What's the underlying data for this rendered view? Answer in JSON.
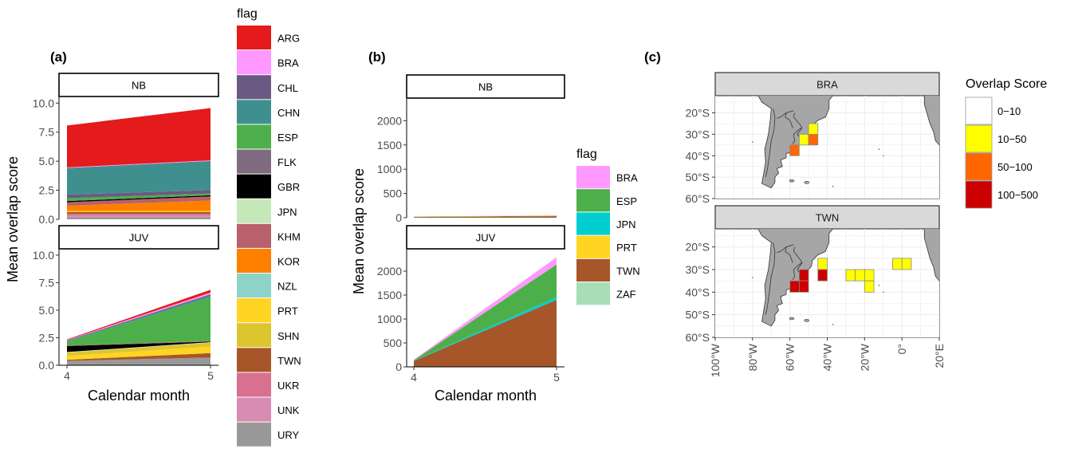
{
  "panel_a": {
    "label": "(a)",
    "legend_title": "flag",
    "flags": [
      {
        "name": "ARG",
        "color": "#E41A1C"
      },
      {
        "name": "BRA",
        "color": "#FF99FF"
      },
      {
        "name": "CHL",
        "color": "#6A5A83"
      },
      {
        "name": "CHN",
        "color": "#3F8F8F"
      },
      {
        "name": "ESP",
        "color": "#4DAF4A"
      },
      {
        "name": "FLK",
        "color": "#7F6B80"
      },
      {
        "name": "GBR",
        "color": "#000000"
      },
      {
        "name": "JPN",
        "color": "#C6E8B8"
      },
      {
        "name": "KHM",
        "color": "#B8606B"
      },
      {
        "name": "KOR",
        "color": "#FF7F00"
      },
      {
        "name": "NZL",
        "color": "#8ED3C7"
      },
      {
        "name": "PRT",
        "color": "#FFD422"
      },
      {
        "name": "SHN",
        "color": "#DDC530"
      },
      {
        "name": "TWN",
        "color": "#A65628"
      },
      {
        "name": "UKR",
        "color": "#D97090"
      },
      {
        "name": "UNK",
        "color": "#D98CB3"
      },
      {
        "name": "URY",
        "color": "#999999"
      }
    ]
  },
  "panel_b": {
    "label": "(b)",
    "legend_title": "flag",
    "flags": [
      {
        "name": "BRA",
        "color": "#FF99FF"
      },
      {
        "name": "ESP",
        "color": "#4DAF4A"
      },
      {
        "name": "JPN",
        "color": "#00CED1"
      },
      {
        "name": "PRT",
        "color": "#FFD422"
      },
      {
        "name": "TWN",
        "color": "#A65628"
      },
      {
        "name": "ZAF",
        "color": "#A8DDB5"
      }
    ]
  },
  "panel_c": {
    "label": "(c)",
    "legend_title": "Overlap Score",
    "legend_items": [
      {
        "label": "0−10",
        "color": "#FFFFFF"
      },
      {
        "label": "10−50",
        "color": "#FFFF00"
      },
      {
        "label": "50−100",
        "color": "#FF6600"
      },
      {
        "label": "100−500",
        "color": "#CC0000"
      }
    ],
    "lat_labels": [
      "20°S",
      "30°S",
      "40°S",
      "50°S",
      "60°S"
    ],
    "lon_labels": [
      "100°W",
      "80°W",
      "60°W",
      "40°W",
      "20°W",
      "0°",
      "20°E"
    ]
  },
  "chart_data": [
    {
      "id": "a",
      "type": "area",
      "stacked": true,
      "xlabel": "Calendar month",
      "ylabel": "Mean overlap score",
      "x": [
        4,
        5
      ],
      "x_ticks": [
        "4",
        "5"
      ],
      "ylim": [
        0,
        10.5
      ],
      "y_ticks": [
        "0.0",
        "2.5",
        "5.0",
        "7.5",
        "10.0"
      ],
      "facets": [
        {
          "strip": "NB",
          "series": [
            {
              "name": "URY",
              "values": [
                0.2,
                0.2
              ]
            },
            {
              "name": "UNK",
              "values": [
                0.12,
                0.12
              ]
            },
            {
              "name": "UKR",
              "values": [
                0.15,
                0.15
              ]
            },
            {
              "name": "TWN",
              "values": [
                0.15,
                0.15
              ]
            },
            {
              "name": "PRT",
              "values": [
                0.1,
                0.1
              ]
            },
            {
              "name": "KOR",
              "values": [
                0.45,
                0.9
              ]
            },
            {
              "name": "KHM",
              "values": [
                0.3,
                0.35
              ]
            },
            {
              "name": "GBR",
              "values": [
                0.1,
                0.1
              ]
            },
            {
              "name": "ESP",
              "values": [
                0.25,
                0.15
              ]
            },
            {
              "name": "CHL",
              "values": [
                0.3,
                0.3
              ]
            },
            {
              "name": "CHN",
              "values": [
                2.3,
                2.5
              ]
            },
            {
              "name": "BRA",
              "values": [
                0.05,
                0.05
              ]
            },
            {
              "name": "ARG",
              "values": [
                3.6,
                4.5
              ]
            }
          ]
        },
        {
          "strip": "JUV",
          "series": [
            {
              "name": "URY",
              "values": [
                0.4,
                0.7
              ]
            },
            {
              "name": "TWN",
              "values": [
                0.1,
                0.4
              ]
            },
            {
              "name": "PRT",
              "values": [
                0.35,
                0.6
              ]
            },
            {
              "name": "SHN",
              "values": [
                0.3,
                0.35
              ]
            },
            {
              "name": "JPN",
              "values": [
                0.05,
                0.05
              ]
            },
            {
              "name": "GBR",
              "values": [
                0.55,
                0.05
              ]
            },
            {
              "name": "KHM",
              "values": [
                0.05,
                0.05
              ]
            },
            {
              "name": "ESP",
              "values": [
                0.35,
                4.0
              ]
            },
            {
              "name": "CHN",
              "values": [
                0.05,
                0.15
              ]
            },
            {
              "name": "CHL",
              "values": [
                0.05,
                0.1
              ]
            },
            {
              "name": "BRA",
              "values": [
                0.05,
                0.15
              ]
            },
            {
              "name": "ARG",
              "values": [
                0.05,
                0.25
              ]
            }
          ]
        }
      ]
    },
    {
      "id": "b",
      "type": "area",
      "stacked": true,
      "xlabel": "Calendar month",
      "ylabel": "Mean overlap score",
      "x": [
        4,
        5
      ],
      "x_ticks": [
        "4",
        "5"
      ],
      "ylim": [
        0,
        2450
      ],
      "y_ticks": [
        "0",
        "500",
        "1000",
        "1500",
        "2000"
      ],
      "facets": [
        {
          "strip": "NB",
          "series": [
            {
              "name": "TWN",
              "values": [
                15,
                30
              ]
            },
            {
              "name": "ESP",
              "values": [
                5,
                10
              ]
            },
            {
              "name": "PRT",
              "values": [
                2,
                5
              ]
            },
            {
              "name": "BRA",
              "values": [
                2,
                5
              ]
            }
          ]
        },
        {
          "strip": "JUV",
          "series": [
            {
              "name": "TWN",
              "values": [
                120,
                1400
              ]
            },
            {
              "name": "JPN",
              "values": [
                5,
                60
              ]
            },
            {
              "name": "ESP",
              "values": [
                15,
                680
              ]
            },
            {
              "name": "BRA",
              "values": [
                10,
                150
              ]
            }
          ]
        }
      ]
    },
    {
      "id": "c",
      "type": "heatmap",
      "xlabel": "",
      "ylabel": "",
      "xlim": [
        -100,
        20
      ],
      "ylim": [
        -60,
        -12
      ],
      "cell_size_deg": 5,
      "facets": [
        {
          "strip": "BRA",
          "cells": [
            {
              "lon": -47.5,
              "lat": -27.5,
              "category": "10−50"
            },
            {
              "lon": -52.5,
              "lat": -32.5,
              "category": "10−50"
            },
            {
              "lon": -47.5,
              "lat": -32.5,
              "category": "50−100"
            },
            {
              "lon": -57.5,
              "lat": -37.5,
              "category": "50−100"
            }
          ]
        },
        {
          "strip": "TWN",
          "cells": [
            {
              "lon": -42.5,
              "lat": -27.5,
              "category": "10−50"
            },
            {
              "lon": -52.5,
              "lat": -32.5,
              "category": "100−500"
            },
            {
              "lon": -42.5,
              "lat": -32.5,
              "category": "100−500"
            },
            {
              "lon": -57.5,
              "lat": -37.5,
              "category": "100−500"
            },
            {
              "lon": -52.5,
              "lat": -37.5,
              "category": "100−500"
            },
            {
              "lon": -27.5,
              "lat": -32.5,
              "category": "10−50"
            },
            {
              "lon": -22.5,
              "lat": -32.5,
              "category": "10−50"
            },
            {
              "lon": -17.5,
              "lat": -32.5,
              "category": "10−50"
            },
            {
              "lon": -17.5,
              "lat": -37.5,
              "category": "10−50"
            },
            {
              "lon": -2.5,
              "lat": -27.5,
              "category": "10−50"
            },
            {
              "lon": 2.5,
              "lat": -27.5,
              "category": "10−50"
            }
          ]
        }
      ]
    }
  ]
}
